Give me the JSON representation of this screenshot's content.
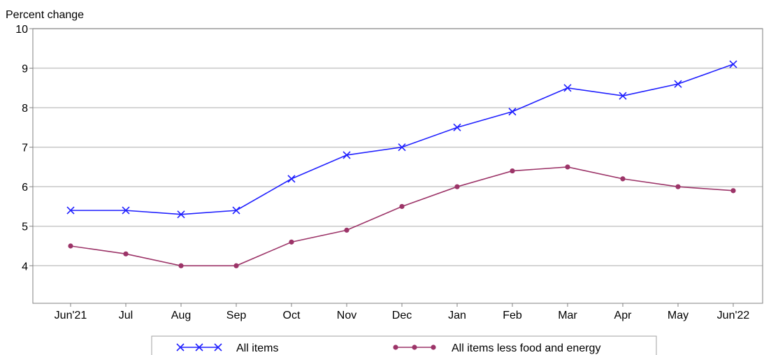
{
  "chart_data": {
    "type": "line",
    "ylabel": "Percent change",
    "categories": [
      "Jun'21",
      "Jul",
      "Aug",
      "Sep",
      "Oct",
      "Nov",
      "Dec",
      "Jan",
      "Feb",
      "Mar",
      "Apr",
      "May",
      "Jun'22"
    ],
    "ylim": [
      3.05,
      10
    ],
    "yticks": [
      4,
      5,
      6,
      7,
      8,
      9,
      10
    ],
    "grid": true,
    "legend_position": "bottom",
    "series": [
      {
        "name": "All items",
        "marker": "x",
        "color": "#1f1fff",
        "values": [
          5.4,
          5.4,
          5.3,
          5.4,
          6.2,
          6.8,
          7.0,
          7.5,
          7.9,
          8.5,
          8.3,
          8.6,
          9.1
        ]
      },
      {
        "name": "All items less food and energy",
        "marker": "circle",
        "color": "#9c3468",
        "values": [
          4.5,
          4.3,
          4.0,
          4.0,
          4.6,
          4.9,
          5.5,
          6.0,
          6.4,
          6.5,
          6.2,
          6.0,
          5.9
        ]
      }
    ]
  }
}
